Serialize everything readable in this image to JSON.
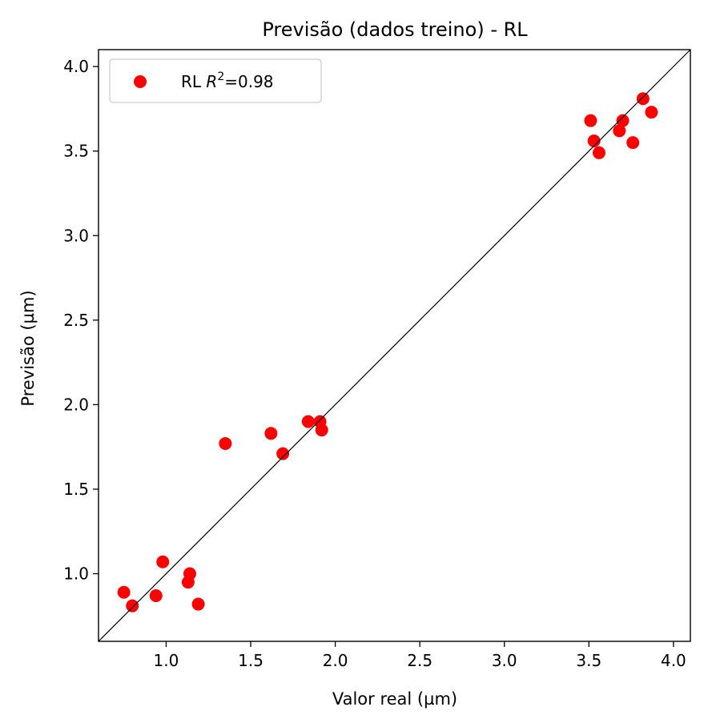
{
  "chart_data": {
    "type": "scatter",
    "title": "Previsão (dados treino) - RL",
    "xlabel": "Valor real (µm)",
    "ylabel": "Previsão (µm)",
    "xlim": [
      0.6,
      4.1
    ],
    "ylim": [
      0.6,
      4.1
    ],
    "xticks": [
      "1.0",
      "1.5",
      "2.0",
      "2.5",
      "3.0",
      "3.5",
      "4.0"
    ],
    "yticks": [
      "1.0",
      "1.5",
      "2.0",
      "2.5",
      "3.0",
      "3.5",
      "4.0"
    ],
    "grid": false,
    "legend_position": "top-left",
    "identity_line": true,
    "series": [
      {
        "name": "RL",
        "legend_prefix": "RL ",
        "legend_r2_symbol": "R",
        "legend_r2_exponent": "2",
        "legend_r2_value": "=0.98",
        "color": "#ff0000",
        "points": [
          {
            "x": 0.75,
            "y": 0.89
          },
          {
            "x": 0.8,
            "y": 0.81
          },
          {
            "x": 0.94,
            "y": 0.87
          },
          {
            "x": 0.98,
            "y": 1.07
          },
          {
            "x": 1.13,
            "y": 0.95
          },
          {
            "x": 1.14,
            "y": 1.0
          },
          {
            "x": 1.19,
            "y": 0.82
          },
          {
            "x": 1.35,
            "y": 1.77
          },
          {
            "x": 1.62,
            "y": 1.83
          },
          {
            "x": 1.69,
            "y": 1.71
          },
          {
            "x": 1.84,
            "y": 1.9
          },
          {
            "x": 1.91,
            "y": 1.9
          },
          {
            "x": 1.92,
            "y": 1.85
          },
          {
            "x": 3.51,
            "y": 3.68
          },
          {
            "x": 3.53,
            "y": 3.56
          },
          {
            "x": 3.56,
            "y": 3.49
          },
          {
            "x": 3.68,
            "y": 3.62
          },
          {
            "x": 3.7,
            "y": 3.68
          },
          {
            "x": 3.76,
            "y": 3.55
          },
          {
            "x": 3.82,
            "y": 3.81
          },
          {
            "x": 3.87,
            "y": 3.73
          }
        ]
      }
    ]
  }
}
